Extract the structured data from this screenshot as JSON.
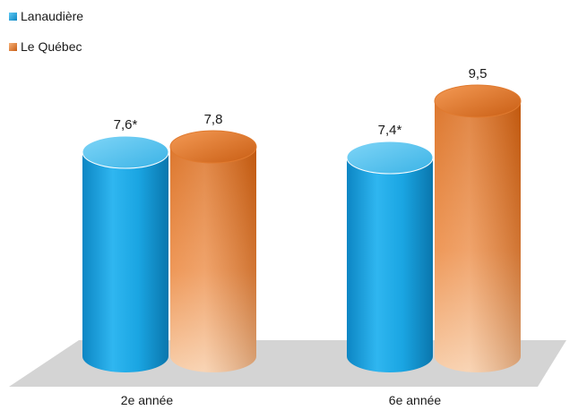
{
  "chart_data": {
    "type": "bar",
    "categories": [
      "2e année",
      "6e année"
    ],
    "series": [
      {
        "name": "Lanaudière",
        "values": [
          7.6,
          7.4
        ],
        "labels": [
          "7,6*",
          "7,4*"
        ],
        "color": "#1aa3e0"
      },
      {
        "name": "Le Québec",
        "values": [
          7.8,
          9.5
        ],
        "labels": [
          "7,8",
          "9,5"
        ],
        "color": "#e8782a"
      }
    ],
    "ylim": [
      0,
      10
    ],
    "grid": false,
    "legend": "top-left",
    "style": "3d-cylinder"
  }
}
